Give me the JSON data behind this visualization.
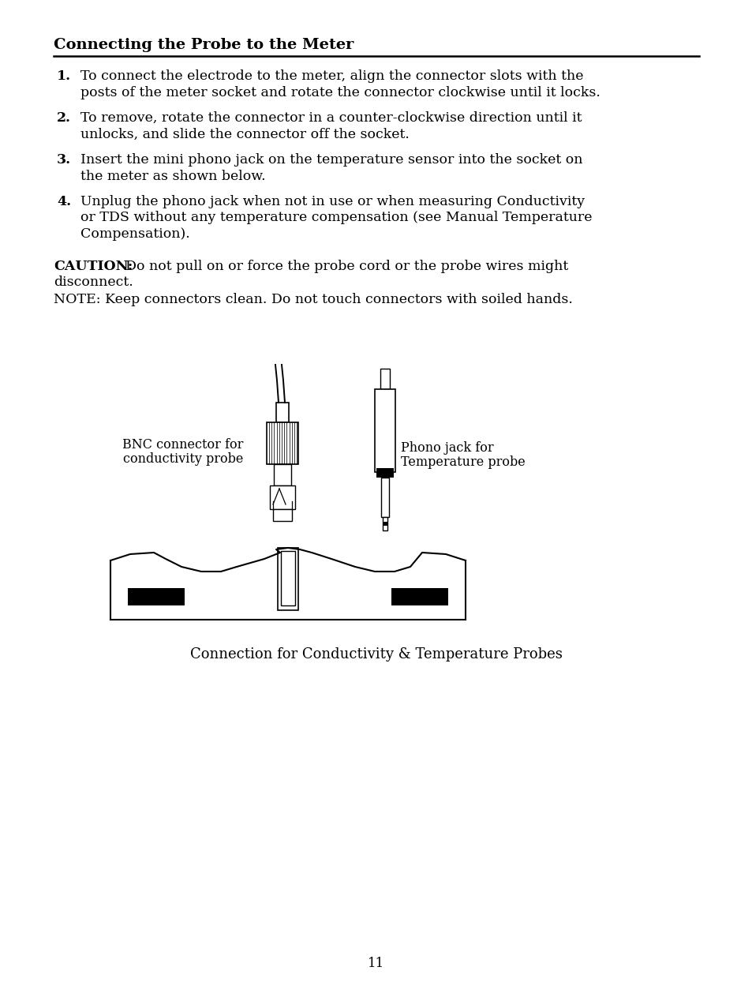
{
  "bg_color": "#ffffff",
  "title": "Connecting the Probe to the Meter",
  "items": [
    {
      "num": "1.",
      "text": "To connect the electrode to the meter, align the connector slots with the\nposts of the meter socket and rotate the connector clockwise until it locks."
    },
    {
      "num": "2.",
      "text": "To remove, rotate the connector in a counter-clockwise direction until it\nunlocks, and slide the connector off the socket."
    },
    {
      "num": "3.",
      "text": "Insert the mini phono jack on the temperature sensor into the socket on\nthe meter as shown below."
    },
    {
      "num": "4.",
      "text": "Unplug the phono jack when not in use or when measuring Conductivity\nor TDS without any temperature compensation (see Manual Temperature\nCompensation)."
    }
  ],
  "caution_bold": "CAUTION:",
  "caution_text": "  Do not pull on or force the probe cord or the probe wires might",
  "caution_text2": "disconnect.",
  "note_text": "NOTE: Keep connectors clean. Do not touch connectors with soiled hands.",
  "bnc_label_line1": "BNC connector for",
  "bnc_label_line2": "conductivity probe",
  "phono_label_line1": "Phono jack for",
  "phono_label_line2": "Temperature probe",
  "fig_caption": "Connection for Conductivity & Temperature Probes",
  "page_num": "11",
  "text_color": "#000000"
}
